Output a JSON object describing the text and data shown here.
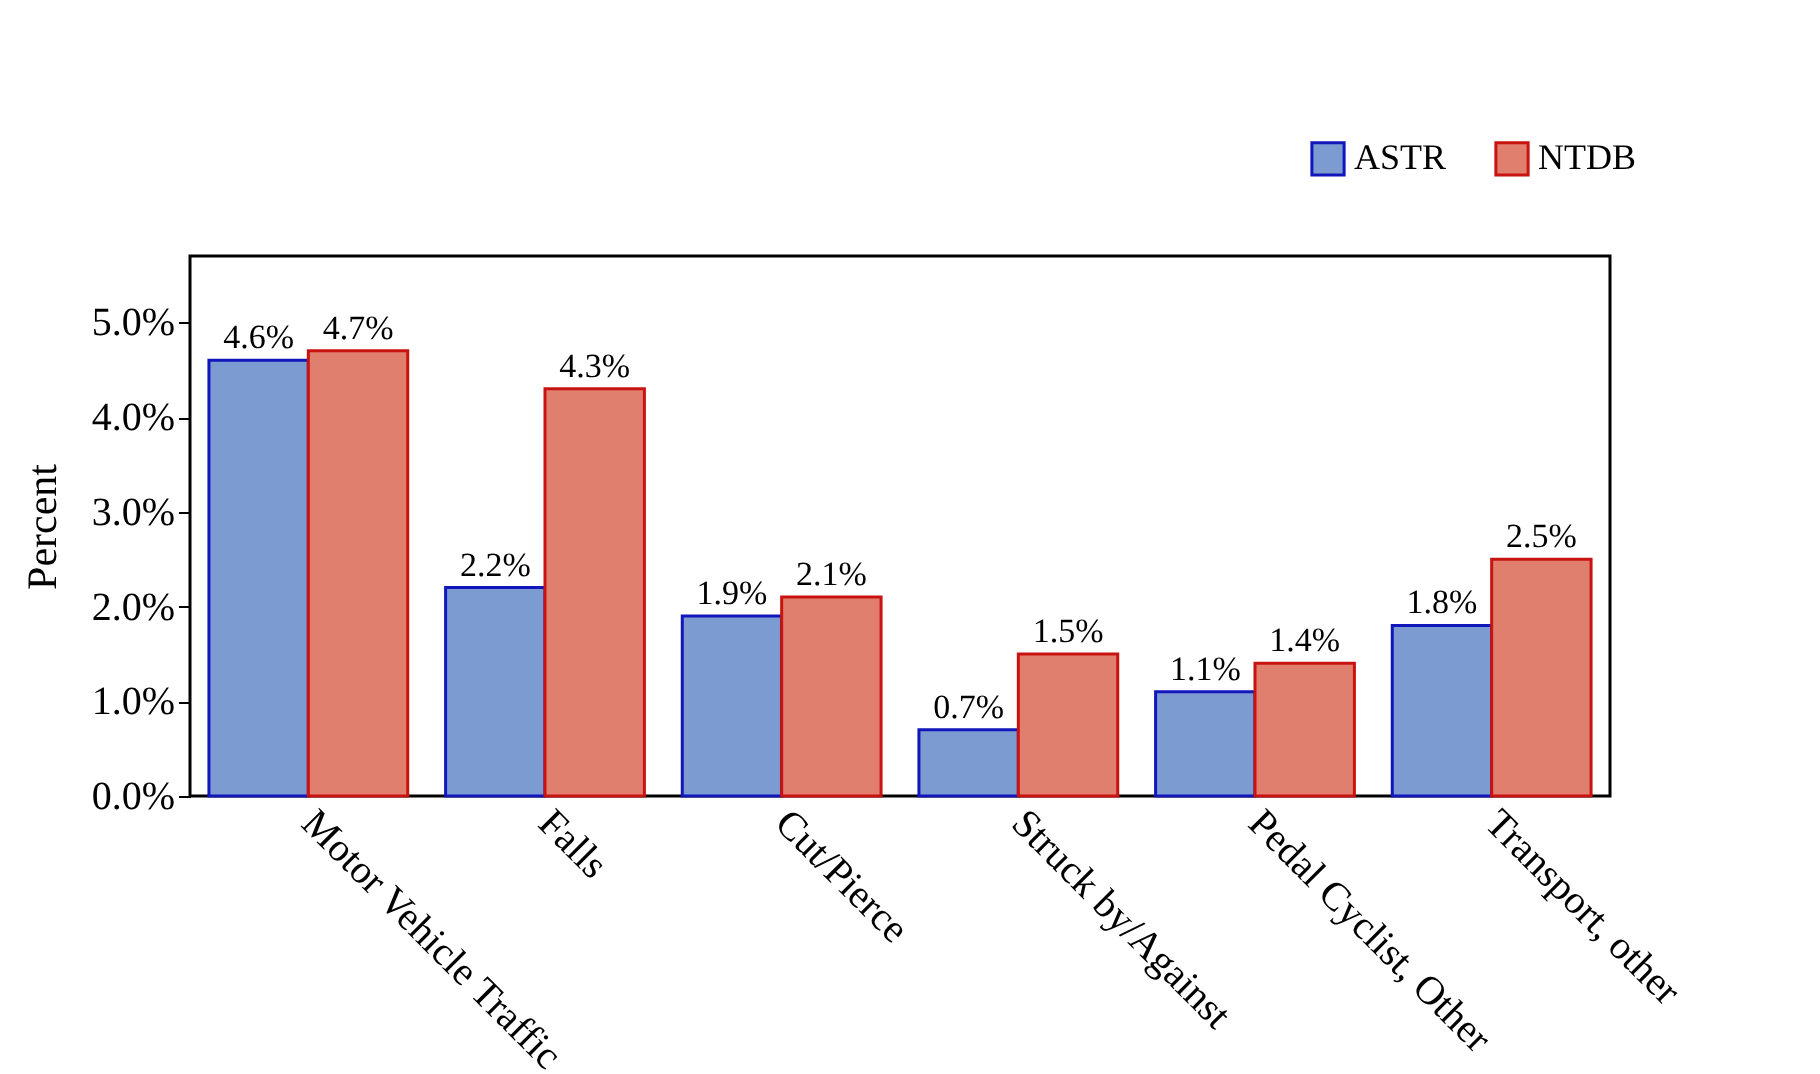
{
  "chart_data": {
    "type": "bar",
    "ylabel": "Percent",
    "categories": [
      "Motor Vehicle Traffic",
      "Falls",
      "Cut/Pierce",
      "Struck by/Against",
      "Pedal Cyclist, Other",
      "Transport, other"
    ],
    "series": [
      {
        "name": "ASTR",
        "color": "#7b9bd1",
        "values": [
          4.6,
          2.2,
          1.9,
          0.7,
          1.1,
          1.8
        ],
        "value_labels": [
          "4.6%",
          "2.2%",
          "1.9%",
          "0.7%",
          "1.1%",
          "1.8%"
        ]
      },
      {
        "name": "NTDB",
        "color": "#e07f6e",
        "values": [
          4.7,
          4.3,
          2.1,
          1.5,
          1.4,
          2.5
        ],
        "value_labels": [
          "4.7%",
          "4.3%",
          "2.1%",
          "1.5%",
          "1.4%",
          "2.5%"
        ]
      }
    ],
    "ylim": [
      0,
      5.7
    ],
    "yticks": [
      {
        "value": 0,
        "label": "0.0%"
      },
      {
        "value": 1,
        "label": "1.0%"
      },
      {
        "value": 2,
        "label": "2.0%"
      },
      {
        "value": 3,
        "label": "3.0%"
      },
      {
        "value": 4,
        "label": "4.0%"
      },
      {
        "value": 5,
        "label": "5.0%"
      }
    ],
    "legend": "top right",
    "grid": false
  }
}
